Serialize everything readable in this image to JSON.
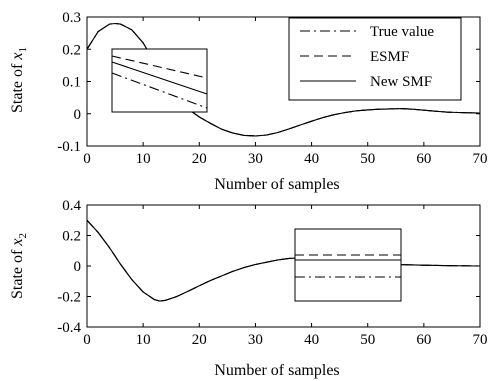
{
  "chart_data": [
    {
      "type": "line",
      "xlabel": "Number of samples",
      "ylabel_prefix": "State of ",
      "ylabel_var": "x",
      "ylabel_sub": "1",
      "xlim": [
        0,
        70
      ],
      "ylim": [
        -0.1,
        0.3
      ],
      "xticks": [
        "0",
        "10",
        "20",
        "30",
        "40",
        "50",
        "60",
        "70"
      ],
      "yticks": [
        "-0.1",
        "0",
        "0.1",
        "0.2",
        "0.3"
      ],
      "grid": false,
      "legend_position": "top-right",
      "series": [
        {
          "name": "True value",
          "style": "dashdot",
          "x": [
            0,
            2,
            4,
            5,
            6,
            8,
            10,
            12,
            14,
            16,
            18,
            20,
            22,
            24,
            26,
            28,
            30,
            32,
            34,
            36,
            38,
            40,
            42,
            44,
            46,
            48,
            50,
            52,
            54,
            56,
            58,
            60,
            62,
            64,
            66,
            68,
            70
          ],
          "y": [
            0.2,
            0.255,
            0.278,
            0.28,
            0.278,
            0.26,
            0.22,
            0.16,
            0.1,
            0.05,
            0.015,
            -0.01,
            -0.03,
            -0.048,
            -0.06,
            -0.067,
            -0.069,
            -0.066,
            -0.058,
            -0.047,
            -0.035,
            -0.023,
            -0.012,
            -0.003,
            0.004,
            0.009,
            0.012,
            0.014,
            0.015,
            0.016,
            0.014,
            0.011,
            0.008,
            0.005,
            0.004,
            0.003,
            0.002
          ]
        },
        {
          "name": "ESMF",
          "style": "dashed",
          "x": [
            0,
            2,
            4,
            5,
            6,
            8,
            10,
            12,
            14,
            16,
            18,
            20,
            22,
            24,
            26,
            28,
            30,
            32,
            34,
            36,
            38,
            40,
            42,
            44,
            46,
            48,
            50,
            52,
            54,
            56,
            58,
            60,
            62,
            64,
            66,
            68,
            70
          ],
          "y": [
            0.2,
            0.255,
            0.278,
            0.28,
            0.278,
            0.26,
            0.22,
            0.16,
            0.1,
            0.05,
            0.015,
            -0.01,
            -0.03,
            -0.048,
            -0.06,
            -0.067,
            -0.069,
            -0.066,
            -0.058,
            -0.047,
            -0.035,
            -0.023,
            -0.012,
            -0.003,
            0.004,
            0.009,
            0.012,
            0.014,
            0.015,
            0.016,
            0.014,
            0.011,
            0.008,
            0.005,
            0.004,
            0.003,
            0.002
          ]
        },
        {
          "name": "New SMF",
          "style": "solid",
          "x": [
            0,
            2,
            4,
            5,
            6,
            8,
            10,
            12,
            14,
            16,
            18,
            20,
            22,
            24,
            26,
            28,
            30,
            32,
            34,
            36,
            38,
            40,
            42,
            44,
            46,
            48,
            50,
            52,
            54,
            56,
            58,
            60,
            62,
            64,
            66,
            68,
            70
          ],
          "y": [
            0.2,
            0.255,
            0.278,
            0.28,
            0.278,
            0.26,
            0.22,
            0.16,
            0.1,
            0.05,
            0.015,
            -0.01,
            -0.03,
            -0.048,
            -0.06,
            -0.067,
            -0.069,
            -0.066,
            -0.058,
            -0.047,
            -0.035,
            -0.023,
            -0.012,
            -0.003,
            0.004,
            0.009,
            0.012,
            0.014,
            0.015,
            0.016,
            0.014,
            0.011,
            0.008,
            0.005,
            0.004,
            0.003,
            0.002
          ]
        }
      ],
      "inset": {
        "position": "left",
        "content": "zoomed detail of the three estimates"
      }
    },
    {
      "type": "line",
      "xlabel": "Number of samples",
      "ylabel_prefix": "State of ",
      "ylabel_var": "x",
      "ylabel_sub": "2",
      "xlim": [
        0,
        70
      ],
      "ylim": [
        -0.4,
        0.4
      ],
      "xticks": [
        "0",
        "10",
        "20",
        "30",
        "40",
        "50",
        "60",
        "70"
      ],
      "yticks": [
        "-0.4",
        "-0.2",
        "0",
        "0.2",
        "0.4"
      ],
      "grid": false,
      "series": [
        {
          "name": "True value",
          "style": "dashdot",
          "x": [
            0,
            2,
            4,
            6,
            8,
            10,
            12,
            13,
            14,
            16,
            18,
            20,
            22,
            24,
            26,
            28,
            30,
            32,
            34,
            36,
            38,
            40,
            45,
            50,
            55,
            60,
            65,
            70
          ],
          "y": [
            0.3,
            0.22,
            0.12,
            0.01,
            -0.09,
            -0.17,
            -0.22,
            -0.23,
            -0.225,
            -0.2,
            -0.165,
            -0.13,
            -0.095,
            -0.065,
            -0.035,
            -0.01,
            0.01,
            0.025,
            0.04,
            0.05,
            0.053,
            0.05,
            0.035,
            0.02,
            0.01,
            0.005,
            0.002,
            0.0
          ]
        },
        {
          "name": "ESMF",
          "style": "dashed",
          "x": [
            0,
            2,
            4,
            6,
            8,
            10,
            12,
            13,
            14,
            16,
            18,
            20,
            22,
            24,
            26,
            28,
            30,
            32,
            34,
            36,
            38,
            40,
            45,
            50,
            55,
            60,
            65,
            70
          ],
          "y": [
            0.3,
            0.22,
            0.12,
            0.01,
            -0.09,
            -0.17,
            -0.22,
            -0.23,
            -0.225,
            -0.2,
            -0.165,
            -0.13,
            -0.095,
            -0.065,
            -0.035,
            -0.01,
            0.01,
            0.025,
            0.04,
            0.05,
            0.053,
            0.05,
            0.035,
            0.02,
            0.01,
            0.005,
            0.002,
            0.0
          ]
        },
        {
          "name": "New SMF",
          "style": "solid",
          "x": [
            0,
            2,
            4,
            6,
            8,
            10,
            12,
            13,
            14,
            16,
            18,
            20,
            22,
            24,
            26,
            28,
            30,
            32,
            34,
            36,
            38,
            40,
            45,
            50,
            55,
            60,
            65,
            70
          ],
          "y": [
            0.3,
            0.22,
            0.12,
            0.01,
            -0.09,
            -0.17,
            -0.22,
            -0.23,
            -0.225,
            -0.2,
            -0.165,
            -0.13,
            -0.095,
            -0.065,
            -0.035,
            -0.01,
            0.01,
            0.025,
            0.04,
            0.05,
            0.053,
            0.05,
            0.035,
            0.02,
            0.01,
            0.005,
            0.002,
            0.0
          ]
        }
      ],
      "inset": {
        "position": "center-right",
        "content": "zoomed detail of the three estimates"
      }
    }
  ],
  "legend": [
    {
      "label": "True value",
      "style": "dashdot"
    },
    {
      "label": "ESMF",
      "style": "dashed"
    },
    {
      "label": "New SMF",
      "style": "solid"
    }
  ],
  "colors": {
    "line": "#000000",
    "background": "#ffffff"
  }
}
